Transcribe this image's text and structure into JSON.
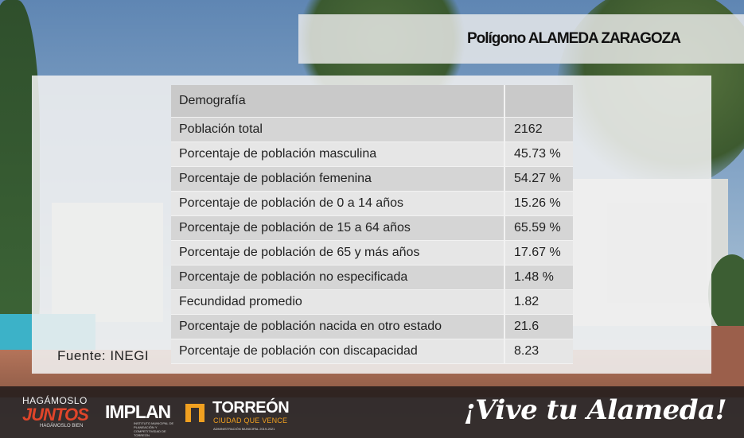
{
  "title": "Polígono ALAMEDA ZARAGOZA",
  "table": {
    "header": [
      "Demografía",
      ""
    ],
    "rows": [
      {
        "label": "Población total",
        "value": "2162"
      },
      {
        "label": "Porcentaje de población masculina",
        "value": "45.73 %"
      },
      {
        "label": "Porcentaje de población femenina",
        "value": "54.27 %"
      },
      {
        "label": "Porcentaje de población de 0 a 14 años",
        "value": "15.26 %"
      },
      {
        "label": "Porcentaje de población de 15 a 64 años",
        "value": "65.59 %"
      },
      {
        "label": "Porcentaje de población de 65 y más años",
        "value": "17.67 %"
      },
      {
        "label": "Porcentaje de población no especificada",
        "value": "1.48 %"
      },
      {
        "label": "Fecundidad promedio",
        "value": "1.82"
      },
      {
        "label": "Porcentaje de población nacida en otro estado",
        "value": "21.6"
      },
      {
        "label": "Porcentaje de población con discapacidad",
        "value": "8.23"
      }
    ]
  },
  "source": "Fuente: INEGI",
  "footer": {
    "hagamoslo_top": "HAGÁMOSLO",
    "hagamoslo_main": "JUNTOS",
    "hagamoslo_sub": "HAGÁMOSLO BIEN",
    "implan": "IMPLAN",
    "implan_sub": "INSTITUTO MUNICIPAL DE PLANEACIÓN Y COMPETITIVIDAD DE TORREÓN",
    "torreon": "TORREÓN",
    "torreon_sub": "CIUDAD QUE VENCE",
    "torreon_sub2": "ADMINISTRACIÓN MUNICIPAL 2019-2021",
    "slogan": "¡Vive tu Alameda!"
  },
  "colors": {
    "header_bg": "#c9c9c9",
    "row_dark": "#d5d5d5",
    "row_light": "#e6e6e6",
    "accent_red": "#e0452a",
    "accent_orange": "#f0a020"
  }
}
